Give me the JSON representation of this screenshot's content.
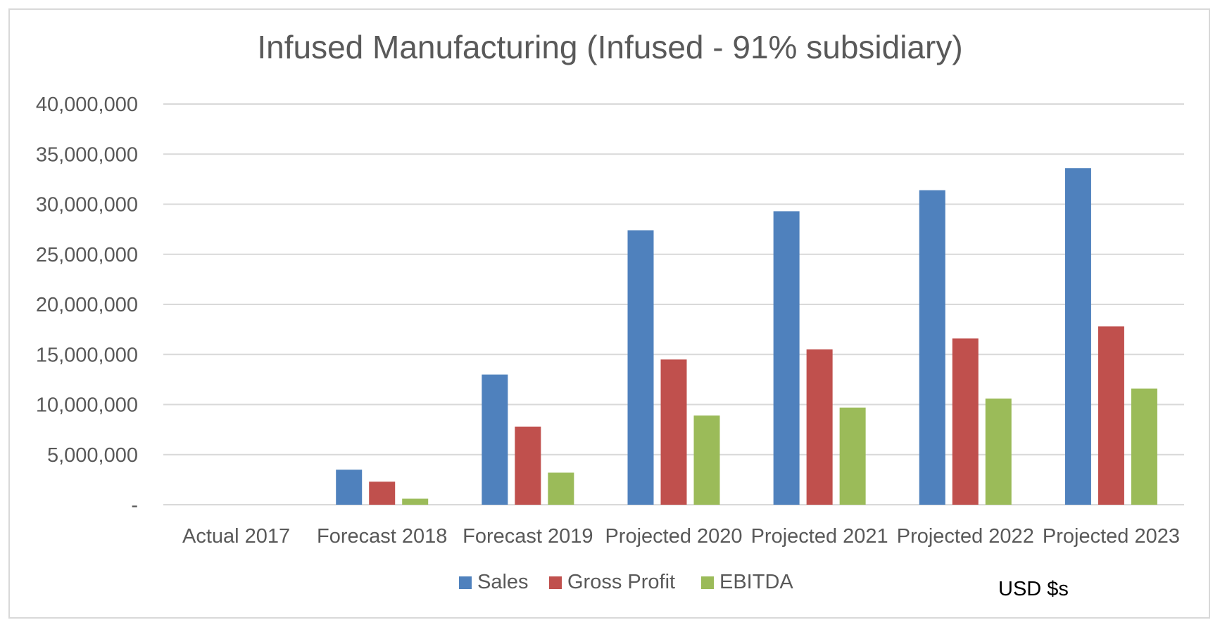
{
  "chart_data": {
    "type": "bar",
    "title": "Infused Manufacturing (Infused - 91% subsidiary)",
    "categories": [
      "Actual 2017",
      "Forecast 2018",
      "Forecast 2019",
      "Projected 2020",
      "Projected 2021",
      "Projected 2022",
      "Projected 2023"
    ],
    "series": [
      {
        "name": "Sales",
        "color": "#4f81bd",
        "values": [
          0,
          3500000,
          13000000,
          27400000,
          29300000,
          31400000,
          33600000
        ]
      },
      {
        "name": "Gross Profit",
        "color": "#c0504d",
        "values": [
          0,
          2300000,
          7800000,
          14500000,
          15500000,
          16600000,
          17800000
        ]
      },
      {
        "name": "EBITDA",
        "color": "#9bbb59",
        "values": [
          0,
          600000,
          3200000,
          8900000,
          9700000,
          10600000,
          11600000
        ]
      }
    ],
    "ylim": [
      0,
      40000000
    ],
    "yticks": [
      0,
      5000000,
      10000000,
      15000000,
      20000000,
      25000000,
      30000000,
      35000000,
      40000000
    ],
    "ytick_labels": [
      "-",
      "5,000,000",
      "10,000,000",
      "15,000,000",
      "20,000,000",
      "25,000,000",
      "30,000,000",
      "35,000,000",
      "40,000,000"
    ],
    "grid": true,
    "gridline_color": "#d9d9d9",
    "legend_position": "bottom",
    "annotation": "USD $s"
  }
}
